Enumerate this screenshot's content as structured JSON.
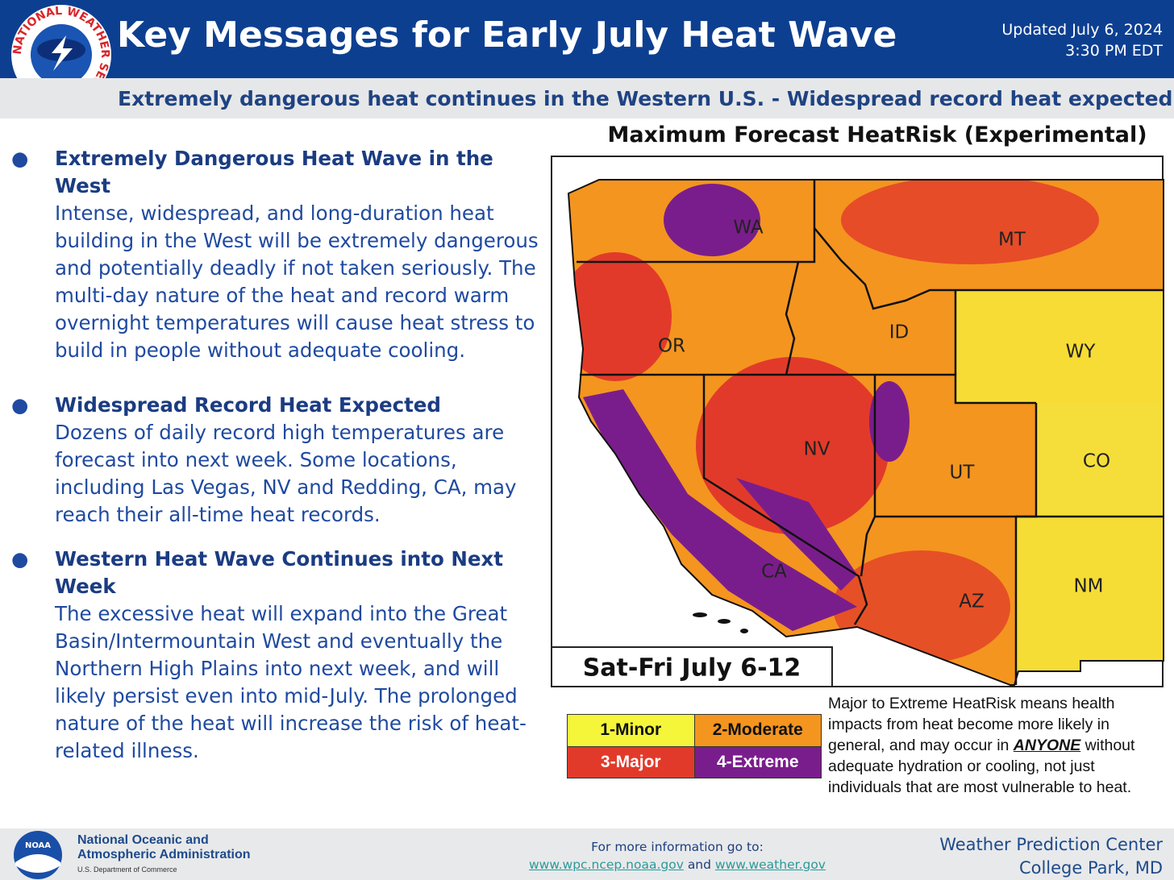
{
  "header": {
    "logo": "NATIONAL WEATHER SERVICE",
    "title": "Key Messages for Early July Heat Wave",
    "updated": "Updated July 6, 2024",
    "time": "3:30 PM EDT"
  },
  "subtitle": "Extremely dangerous heat continues in the Western U.S. - Widespread record heat expected",
  "messages": [
    {
      "heading": "Extremely Dangerous Heat Wave in the West",
      "body": "Intense, widespread, and long-duration heat building in the West will be extremely dangerous and potentially deadly if not taken seriously. The multi-day nature of the heat and record warm overnight temperatures will cause heat stress to build in people without adequate cooling."
    },
    {
      "heading": "Widespread Record Heat Expected",
      "body": "Dozens of daily record high temperatures are forecast into next week. Some locations, including Las Vegas, NV and Redding, CA, may reach their all-time heat records."
    },
    {
      "heading": "Western Heat Wave Continues into Next Week",
      "body": "The excessive heat will expand into the Great Basin/Intermountain West and eventually the Northern High Plains into next week, and will likely persist even into mid-July. The prolonged nature of the heat will increase the risk of heat-related illness."
    }
  ],
  "map": {
    "title": "Maximum Forecast HeatRisk (Experimental)",
    "period": "Sat-Fri July 6-12",
    "states": [
      "WA",
      "OR",
      "CA",
      "NV",
      "ID",
      "MT",
      "WY",
      "UT",
      "CO",
      "AZ",
      "NM"
    ],
    "legend": [
      {
        "label": "1-Minor",
        "color": "#f5f53a"
      },
      {
        "label": "2-Moderate",
        "color": "#f4951f"
      },
      {
        "label": "3-Major",
        "color": "#e23a2a"
      },
      {
        "label": "4-Extreme",
        "color": "#7a1d8c"
      }
    ],
    "note_before": "Major to Extreme HeatRisk means health impacts from heat become more likely in general, and may occur in",
    "note_emphasis": "ANYONE",
    "note_after": "without adequate hydration or cooling, not just individuals that are most vulnerable to heat."
  },
  "footer": {
    "logo": "NOAA",
    "agency": "National Oceanic and Atmospheric Administration",
    "department": "U.S. Department of Commerce",
    "info": "For more information go to:",
    "link1": "www.wpc.ncep.noaa.gov",
    "conjunction": "and",
    "link2": "www.weather.gov",
    "office": "Weather Prediction Center",
    "location": "College Park, MD"
  }
}
